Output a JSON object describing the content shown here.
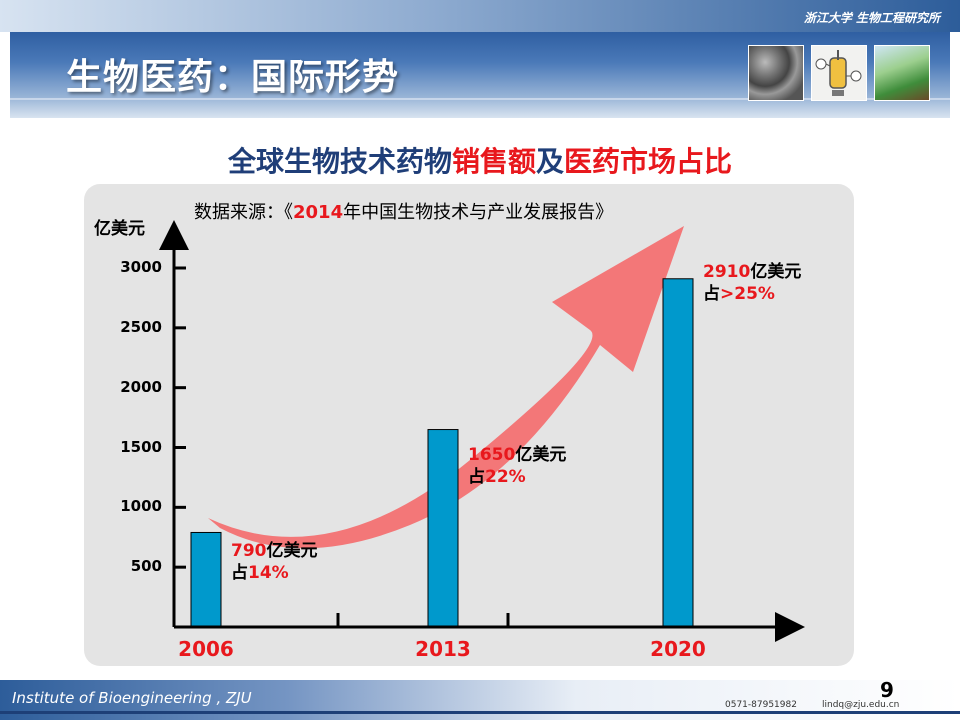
{
  "header": {
    "institute_name": "浙江大学 生物工程研究所",
    "title": "生物医药：国际形势"
  },
  "chart_title": {
    "part1": "全球生物技术药物",
    "part2": "销售额",
    "part3": "及",
    "part4": "医药市场占比"
  },
  "source": {
    "prefix": "数据来源：《",
    "year": "2014",
    "suffix": "年中国生物技术与产业发展报告》"
  },
  "chart_data": {
    "type": "bar",
    "ylabel": "亿美元",
    "ylim": [
      0,
      3500
    ],
    "yticks": [
      "500",
      "1000",
      "1500",
      "2000",
      "2500",
      "3000"
    ],
    "categories": [
      "2006",
      "2013",
      "2020"
    ],
    "values": [
      790,
      1650,
      2910
    ],
    "bar_color": "#0099cc",
    "arrow_color": "#f46a6c",
    "annotations": [
      {
        "value_text": "790",
        "unit": "亿美元",
        "share_prefix": "占",
        "share": "14%"
      },
      {
        "value_text": "1650",
        "unit": "亿美元",
        "share_prefix": "占",
        "share": "22%"
      },
      {
        "value_text": "2910",
        "unit": "亿美元",
        "share_prefix": "占",
        "share": ">25%"
      }
    ]
  },
  "footer": {
    "institute": "Institute of Bioengineering , ZJU",
    "phone": "0571-87951982",
    "email": "lindq@zju.edu.cn",
    "page": "9"
  }
}
